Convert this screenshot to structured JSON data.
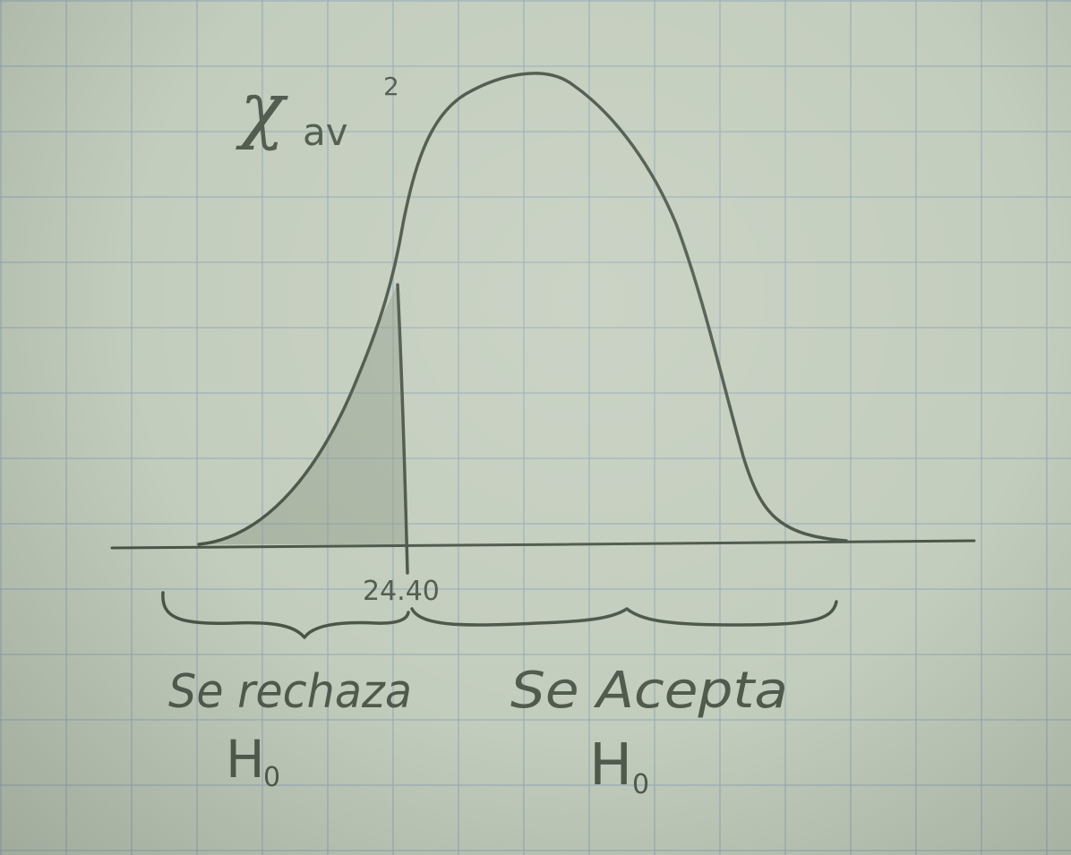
{
  "diagram": {
    "statistic_symbol": "χ",
    "statistic_subscript": "av",
    "statistic_superscript": "2",
    "critical_value": "24.40",
    "reject_region": {
      "label_line1": "Se rechaza",
      "label_line2": "H",
      "label_line2_sub": "0"
    },
    "accept_region": {
      "label_line1": "Se Acepta",
      "label_line2": "H",
      "label_line2_sub": "0"
    },
    "colors": {
      "ink": "#4a5548",
      "shaded_region": "#8c9a86",
      "paper": "#c3cdbd"
    }
  }
}
